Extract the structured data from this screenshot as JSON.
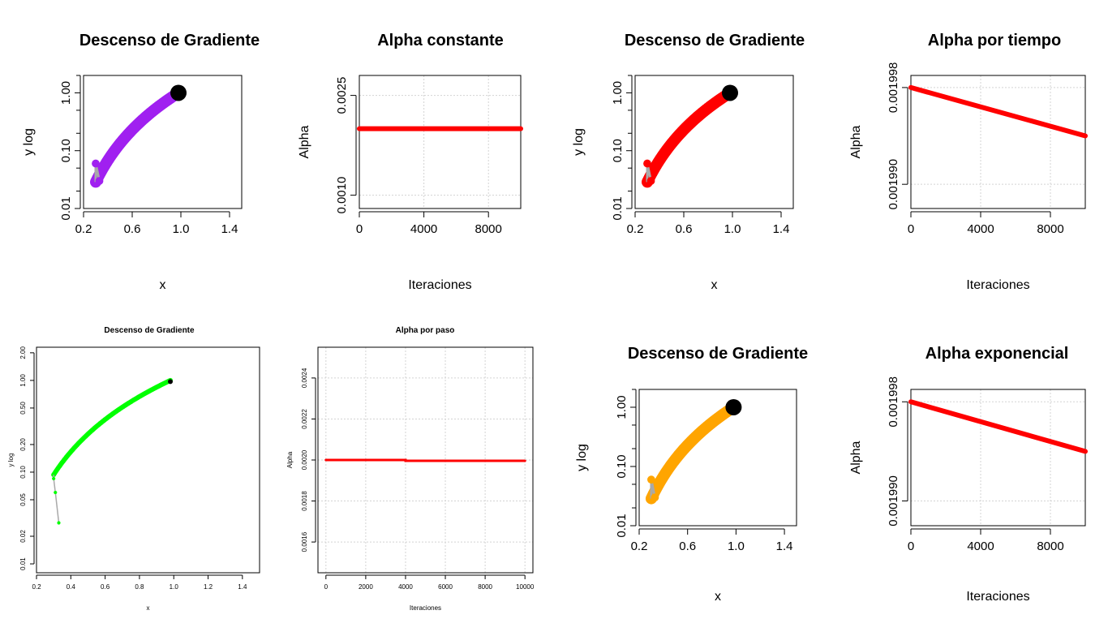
{
  "chart_data": [
    {
      "id": "p1",
      "type": "scatter",
      "title": "Descenso de Gradiente",
      "xlabel": "x",
      "ylabel": "y log",
      "xlim": [
        0.2,
        1.5
      ],
      "ylim": [
        0.01,
        2.0
      ],
      "ylog": true,
      "xticks": [
        "0.2",
        "0.6",
        "1.0",
        "1.4"
      ],
      "yticks": [
        "0.01",
        "0.10",
        "1.00"
      ],
      "path": {
        "x0": 0.98,
        "x1": 0.3,
        "c": 1.0,
        "p": 3.0
      },
      "tail": [
        [
          0.3,
          0.06
        ],
        [
          0.33,
          0.03
        ]
      ],
      "start": [
        0.98,
        1.0
      ],
      "color": "#A020F0",
      "tail_color": "#A9A9A9",
      "start_color": "#000000"
    },
    {
      "id": "p2",
      "type": "line",
      "title": "Alpha constante",
      "xlabel": "Iteraciones",
      "ylabel": "Alpha",
      "xlim": [
        0,
        10000
      ],
      "ylim": [
        0.0008,
        0.0028
      ],
      "xticks": [
        "0",
        "4000",
        "8000"
      ],
      "yticks": [
        "0.0010",
        "0.0025"
      ],
      "grid": true,
      "x": [
        0,
        10000
      ],
      "y": [
        0.002,
        0.002
      ],
      "color": "#FF0000"
    },
    {
      "id": "p3",
      "type": "scatter",
      "title": "Descenso de Gradiente",
      "xlabel": "x",
      "ylabel": "y log",
      "xlim": [
        0.2,
        1.5
      ],
      "ylim": [
        0.01,
        2.0
      ],
      "ylog": true,
      "xticks": [
        "0.2",
        "0.6",
        "1.0",
        "1.4"
      ],
      "yticks": [
        "0.01",
        "0.10",
        "1.00"
      ],
      "path": {
        "x0": 0.98,
        "x1": 0.3,
        "c": 1.0,
        "p": 3.0
      },
      "tail": [
        [
          0.3,
          0.06
        ],
        [
          0.33,
          0.03
        ]
      ],
      "start": [
        0.98,
        1.0
      ],
      "color": "#FF0000",
      "tail_color": "#A9A9A9",
      "start_color": "#000000"
    },
    {
      "id": "p4",
      "type": "line",
      "title": "Alpha por tiempo",
      "xlabel": "Iteraciones",
      "ylabel": "Alpha",
      "xlim": [
        0,
        10000
      ],
      "ylim": [
        0.001988,
        0.001999
      ],
      "xticks": [
        "0",
        "4000",
        "8000"
      ],
      "yticks": [
        "0.001990",
        "0.001998"
      ],
      "grid": true,
      "x": [
        0,
        10000
      ],
      "y": [
        0.001998,
        0.001994
      ],
      "color": "#FF0000"
    },
    {
      "id": "p5",
      "type": "scatter",
      "title": "Descenso de Gradiente",
      "xlabel": "x",
      "ylabel": "y log",
      "xlim": [
        0.2,
        1.5
      ],
      "ylim": [
        0.008,
        2.3
      ],
      "ylog": true,
      "xticks": [
        "0.2",
        "0.4",
        "0.6",
        "0.8",
        "1.0",
        "1.2",
        "1.4"
      ],
      "yticks": [
        "0.01",
        "0.02",
        "0.05",
        "0.10",
        "0.20",
        "0.50",
        "1.00",
        "2.00"
      ],
      "path": {
        "x0": 0.98,
        "x1": 0.3,
        "c": 1.0,
        "p": 2.0
      },
      "tail": [
        [
          0.3,
          0.085
        ],
        [
          0.31,
          0.06
        ],
        [
          0.33,
          0.028
        ]
      ],
      "start": [
        0.98,
        0.97
      ],
      "color": "#00FF00",
      "tail_color": "#A9A9A9",
      "start_color": "#000000"
    },
    {
      "id": "p6",
      "type": "line",
      "title": "Alpha por paso",
      "xlabel": "Iteraciones",
      "ylabel": "Alpha",
      "xlim": [
        -400,
        10400
      ],
      "ylim": [
        0.00145,
        0.00255
      ],
      "xticks": [
        "0",
        "2000",
        "4000",
        "6000",
        "8000",
        "10000"
      ],
      "yticks": [
        "0.0016",
        "0.0018",
        "0.0020",
        "0.0022",
        "0.0024"
      ],
      "grid": true,
      "x": [
        0,
        4000,
        4000,
        10000
      ],
      "y": [
        0.002,
        0.002,
        0.001996,
        0.001996
      ],
      "color": "#FF0000"
    },
    {
      "id": "p7",
      "type": "scatter",
      "title": "Descenso de Gradiente",
      "xlabel": "x",
      "ylabel": "y log",
      "xlim": [
        0.2,
        1.5
      ],
      "ylim": [
        0.01,
        2.0
      ],
      "ylog": true,
      "xticks": [
        "0.2",
        "0.6",
        "1.0",
        "1.4"
      ],
      "yticks": [
        "0.01",
        "0.10",
        "1.00"
      ],
      "path": {
        "x0": 0.98,
        "x1": 0.3,
        "c": 1.0,
        "p": 3.0
      },
      "tail": [
        [
          0.3,
          0.06
        ],
        [
          0.33,
          0.03
        ]
      ],
      "start": [
        0.98,
        1.0
      ],
      "color": "#FFA500",
      "tail_color": "#A9A9A9",
      "start_color": "#000000"
    },
    {
      "id": "p8",
      "type": "line",
      "title": "Alpha exponencial",
      "xlabel": "Iteraciones",
      "ylabel": "Alpha",
      "xlim": [
        0,
        10000
      ],
      "ylim": [
        0.001988,
        0.001999
      ],
      "xticks": [
        "0",
        "4000",
        "8000"
      ],
      "yticks": [
        "0.001990",
        "0.001998"
      ],
      "grid": true,
      "x": [
        0,
        10000
      ],
      "y": [
        0.001998,
        0.001994
      ],
      "color": "#FF0000"
    }
  ]
}
